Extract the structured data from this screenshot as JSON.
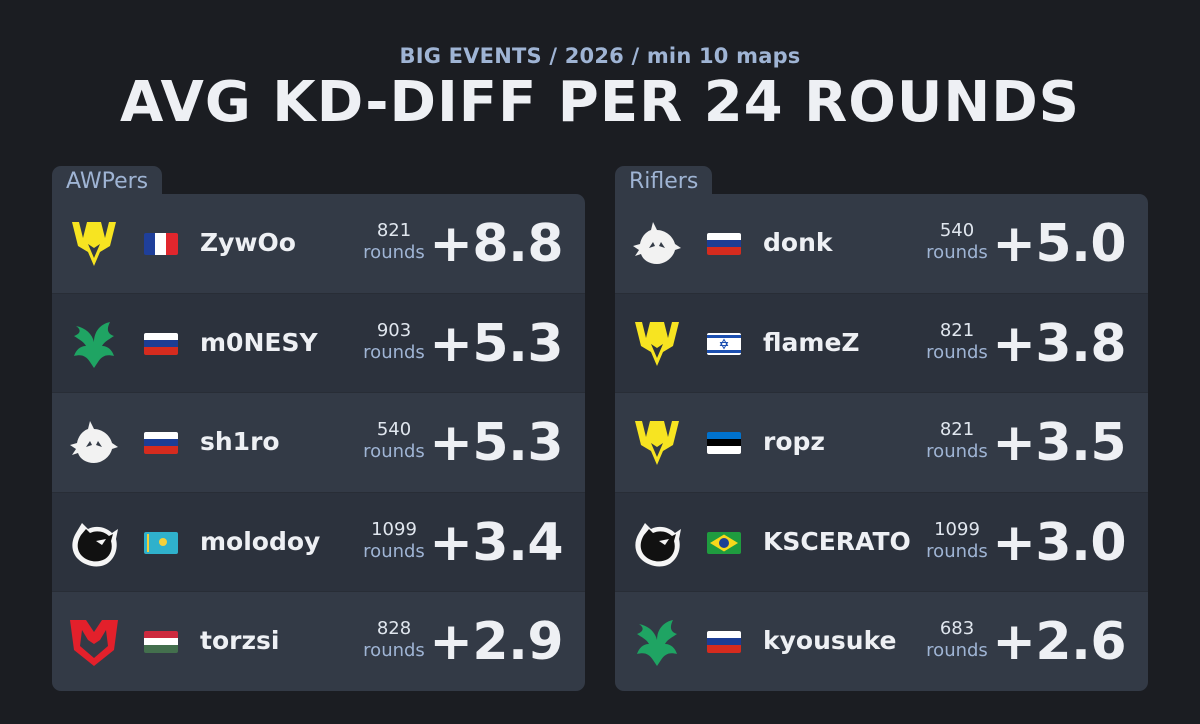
{
  "header": {
    "subtitle": "BIG EVENTS / 2026 / min 10 maps",
    "title": "AVG KD-DIFF PER 24 ROUNDS"
  },
  "panels": [
    {
      "label": "AWPers",
      "players": [
        {
          "name": "ZywOo",
          "rounds": "821",
          "rounds_label": "rounds",
          "value": "+8.8",
          "team_logo": "vitality-logo",
          "flag": "france-flag"
        },
        {
          "name": "m0NESY",
          "rounds": "903",
          "rounds_label": "rounds",
          "value": "+5.3",
          "team_logo": "falcons-logo",
          "flag": "russia-flag"
        },
        {
          "name": "sh1ro",
          "rounds": "540",
          "rounds_label": "rounds",
          "value": "+5.3",
          "team_logo": "spirit-logo",
          "flag": "russia-flag"
        },
        {
          "name": "molodoy",
          "rounds": "1099",
          "rounds_label": "rounds",
          "value": "+3.4",
          "team_logo": "furia-logo",
          "flag": "kazakhstan-flag"
        },
        {
          "name": "torzsi",
          "rounds": "828",
          "rounds_label": "rounds",
          "value": "+2.9",
          "team_logo": "mouz-logo",
          "flag": "hungary-flag"
        }
      ]
    },
    {
      "label": "Riflers",
      "players": [
        {
          "name": "donk",
          "rounds": "540",
          "rounds_label": "rounds",
          "value": "+5.0",
          "team_logo": "spirit-logo",
          "flag": "russia-flag"
        },
        {
          "name": "flameZ",
          "rounds": "821",
          "rounds_label": "rounds",
          "value": "+3.8",
          "team_logo": "vitality-logo",
          "flag": "israel-flag"
        },
        {
          "name": "ropz",
          "rounds": "821",
          "rounds_label": "rounds",
          "value": "+3.5",
          "team_logo": "vitality-logo",
          "flag": "estonia-flag"
        },
        {
          "name": "KSCERATO",
          "rounds": "1099",
          "rounds_label": "rounds",
          "value": "+3.0",
          "team_logo": "furia-logo",
          "flag": "brazil-flag"
        },
        {
          "name": "kyousuke",
          "rounds": "683",
          "rounds_label": "rounds",
          "value": "+2.6",
          "team_logo": "falcons-logo",
          "flag": "russia-flag"
        }
      ]
    }
  ],
  "colors": {
    "background": "#1b1d22",
    "panel": "#333a46",
    "accent_text": "#9fb4d4",
    "vitality": "#f7e421",
    "falcons": "#1fa463",
    "mouz": "#e3202b"
  }
}
